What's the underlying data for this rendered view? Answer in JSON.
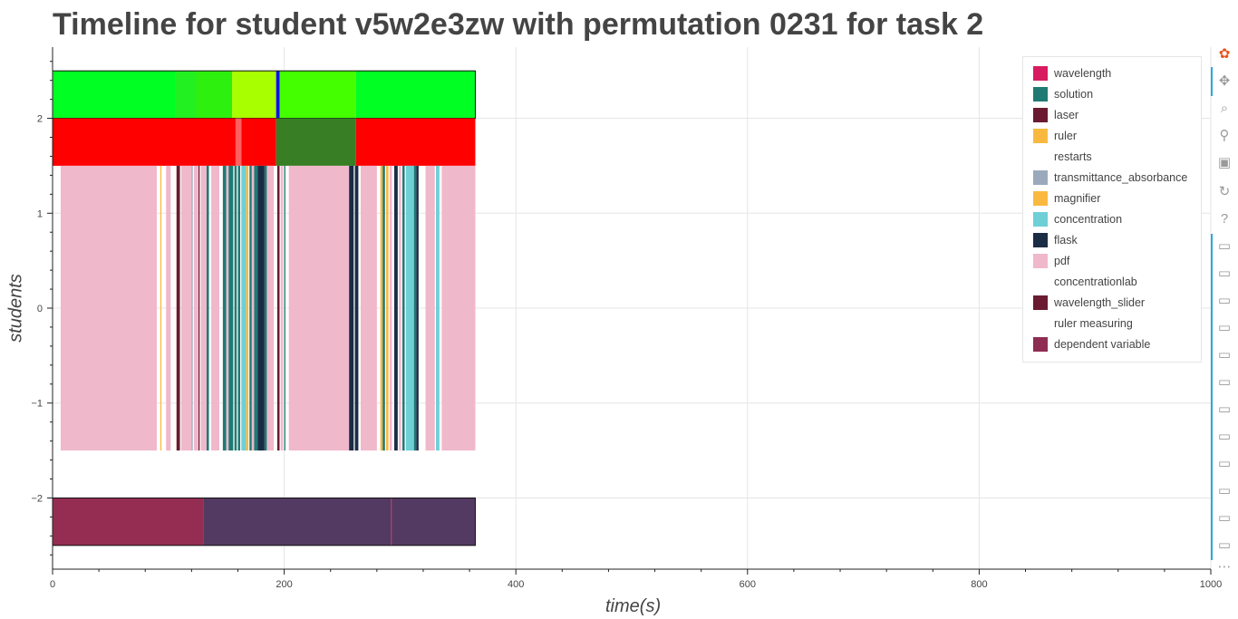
{
  "title": "Timeline for student v5w2e3zw with permutation 0231 for task 2",
  "chart_data": {
    "type": "timeline",
    "title": "Timeline for student v5w2e3zw with permutation 0231 for task 2",
    "xlabel": "time(s)",
    "ylabel": "students",
    "xlim": [
      0,
      1000
    ],
    "ylim": [
      -2.75,
      2.75
    ],
    "x_ticks": [
      0,
      200,
      400,
      600,
      800,
      1000
    ],
    "y_ticks": [
      -2,
      -1,
      0,
      1,
      2
    ],
    "x_tick_labels": [
      "0",
      "200",
      "400",
      "600",
      "800",
      "1000"
    ],
    "y_tick_labels": [
      "−2",
      "−1",
      "0",
      "1",
      "2"
    ],
    "grid": true,
    "legend_position": "top-right",
    "legend": [
      {
        "label": "wavelength",
        "color": "#d81b60"
      },
      {
        "label": "solution",
        "color": "#1f7a73"
      },
      {
        "label": "laser",
        "color": "#6a1b31"
      },
      {
        "label": "ruler",
        "color": "#f9b940"
      },
      {
        "label": "restarts",
        "color": "#ffffff"
      },
      {
        "label": "transmittance_absorbance",
        "color": "#9ba9bd"
      },
      {
        "label": "magnifier",
        "color": "#f9b940"
      },
      {
        "label": "concentration",
        "color": "#6fcfd6"
      },
      {
        "label": "flask",
        "color": "#1b2d45"
      },
      {
        "label": "pdf",
        "color": "#f0b8cb"
      },
      {
        "label": "concentrationlab",
        "color": "#ffffff"
      },
      {
        "label": "wavelength_slider",
        "color": "#6a1b31"
      },
      {
        "label": "ruler measuring",
        "color": "#ffffff"
      },
      {
        "label": "dependent variable",
        "color": "#8e2c52"
      }
    ],
    "rows": [
      {
        "y0": 2.0,
        "y1": 2.5,
        "outline": true,
        "segments": [
          {
            "x0": 0,
            "x1": 106,
            "color": "#00ff22"
          },
          {
            "x0": 106,
            "x1": 124,
            "color": "#22f020"
          },
          {
            "x0": 124,
            "x1": 155,
            "color": "#2ef00e"
          },
          {
            "x0": 155,
            "x1": 193,
            "color": "#a8ff00"
          },
          {
            "x0": 193,
            "x1": 196,
            "color": "#1010e8"
          },
          {
            "x0": 196,
            "x1": 262,
            "color": "#44ff00"
          },
          {
            "x0": 262,
            "x1": 365,
            "color": "#00ff22"
          }
        ]
      },
      {
        "y0": 1.5,
        "y1": 2.0,
        "outline": false,
        "segments": [
          {
            "x0": 0,
            "x1": 158,
            "color": "#ff0000"
          },
          {
            "x0": 158,
            "x1": 163,
            "color": "#ff6060"
          },
          {
            "x0": 163,
            "x1": 193,
            "color": "#ff0000"
          },
          {
            "x0": 193,
            "x1": 262,
            "color": "#377e24"
          },
          {
            "x0": 262,
            "x1": 365,
            "color": "#ff0000"
          }
        ]
      },
      {
        "y0": -1.5,
        "y1": 1.5,
        "outline": false,
        "segments": [
          {
            "x0": 7,
            "x1": 90,
            "color": "#f0b8cb"
          },
          {
            "x0": 93,
            "x1": 94,
            "color": "#f9b940"
          },
          {
            "x0": 98,
            "x1": 102,
            "color": "#f0b8cb"
          },
          {
            "x0": 107,
            "x1": 110,
            "color": "#6a1b31"
          },
          {
            "x0": 111,
            "x1": 120,
            "color": "#f0b8cb"
          },
          {
            "x0": 120,
            "x1": 121,
            "color": "#9ba9bd"
          },
          {
            "x0": 122,
            "x1": 126,
            "color": "#f0b8cb"
          },
          {
            "x0": 126,
            "x1": 127,
            "color": "#6a1b31"
          },
          {
            "x0": 128,
            "x1": 133,
            "color": "#f0b8cb"
          },
          {
            "x0": 133,
            "x1": 135,
            "color": "#1f7a73"
          },
          {
            "x0": 137,
            "x1": 144,
            "color": "#f0b8cb"
          },
          {
            "x0": 147,
            "x1": 150,
            "color": "#1f7a73"
          },
          {
            "x0": 150,
            "x1": 152,
            "color": "#f0b8cb"
          },
          {
            "x0": 152,
            "x1": 156,
            "color": "#1f7a73"
          },
          {
            "x0": 157,
            "x1": 159,
            "color": "#1f7a73"
          },
          {
            "x0": 160,
            "x1": 162,
            "color": "#1f7a73"
          },
          {
            "x0": 163,
            "x1": 167,
            "color": "#6fcfd6"
          },
          {
            "x0": 167,
            "x1": 169,
            "color": "#f9b940"
          },
          {
            "x0": 170,
            "x1": 172,
            "color": "#1f7a73"
          },
          {
            "x0": 172,
            "x1": 174,
            "color": "#f0b8cb"
          },
          {
            "x0": 174,
            "x1": 177,
            "color": "#1f7a73"
          },
          {
            "x0": 177,
            "x1": 183,
            "color": "#1b2d45"
          },
          {
            "x0": 183,
            "x1": 185,
            "color": "#1f7a73"
          },
          {
            "x0": 185,
            "x1": 191,
            "color": "#f0b8cb"
          },
          {
            "x0": 194,
            "x1": 196,
            "color": "#6a1b31"
          },
          {
            "x0": 197,
            "x1": 199,
            "color": "#f0b8cb"
          },
          {
            "x0": 200,
            "x1": 201,
            "color": "#1f7a73"
          },
          {
            "x0": 204,
            "x1": 256,
            "color": "#f0b8cb"
          },
          {
            "x0": 256,
            "x1": 260,
            "color": "#1b2d45"
          },
          {
            "x0": 261,
            "x1": 264,
            "color": "#1b2d45"
          },
          {
            "x0": 266,
            "x1": 280,
            "color": "#f0b8cb"
          },
          {
            "x0": 283,
            "x1": 285,
            "color": "#f9b940"
          },
          {
            "x0": 285,
            "x1": 287,
            "color": "#1f7a73"
          },
          {
            "x0": 288,
            "x1": 290,
            "color": "#f9b940"
          },
          {
            "x0": 291,
            "x1": 293,
            "color": "#f0b8cb"
          },
          {
            "x0": 295,
            "x1": 298,
            "color": "#1b2d45"
          },
          {
            "x0": 299,
            "x1": 301,
            "color": "#f0b8cb"
          },
          {
            "x0": 302,
            "x1": 304,
            "color": "#1f7a73"
          },
          {
            "x0": 305,
            "x1": 312,
            "color": "#6fcfd6"
          },
          {
            "x0": 312,
            "x1": 314,
            "color": "#1f7a73"
          },
          {
            "x0": 314,
            "x1": 316,
            "color": "#1b2d45"
          },
          {
            "x0": 322,
            "x1": 330,
            "color": "#f0b8cb"
          },
          {
            "x0": 331,
            "x1": 334,
            "color": "#6fcfd6"
          },
          {
            "x0": 336,
            "x1": 365,
            "color": "#f0b8cb"
          }
        ]
      },
      {
        "y0": -2.5,
        "y1": -2.0,
        "outline": true,
        "segments": [
          {
            "x0": 0,
            "x1": 130,
            "color": "#952d53"
          },
          {
            "x0": 130,
            "x1": 292,
            "color": "#533a63"
          },
          {
            "x0": 292,
            "x1": 293,
            "color": "#952d53"
          },
          {
            "x0": 293,
            "x1": 365,
            "color": "#533a63"
          }
        ]
      }
    ]
  },
  "toolbar": [
    {
      "name": "bokeh-logo-icon",
      "glyph": "✿"
    },
    {
      "name": "pan-tool-icon",
      "glyph": "✥"
    },
    {
      "name": "box-zoom-icon",
      "glyph": "⌕"
    },
    {
      "name": "wheel-zoom-icon",
      "glyph": "⚲"
    },
    {
      "name": "save-icon",
      "glyph": "▣"
    },
    {
      "name": "reset-icon",
      "glyph": "↻"
    },
    {
      "name": "help-icon",
      "glyph": "?"
    },
    {
      "name": "hover-icon",
      "glyph": "▭"
    },
    {
      "name": "hover-icon",
      "glyph": "▭"
    },
    {
      "name": "hover-icon",
      "glyph": "▭"
    },
    {
      "name": "hover-icon",
      "glyph": "▭"
    },
    {
      "name": "hover-icon",
      "glyph": "▭"
    },
    {
      "name": "hover-icon",
      "glyph": "▭"
    },
    {
      "name": "hover-icon",
      "glyph": "▭"
    },
    {
      "name": "hover-icon",
      "glyph": "▭"
    },
    {
      "name": "hover-icon",
      "glyph": "▭"
    },
    {
      "name": "hover-icon",
      "glyph": "▭"
    },
    {
      "name": "hover-icon",
      "glyph": "▭"
    },
    {
      "name": "hover-icon",
      "glyph": "▭"
    },
    {
      "name": "more-icon",
      "glyph": "⋯"
    }
  ]
}
